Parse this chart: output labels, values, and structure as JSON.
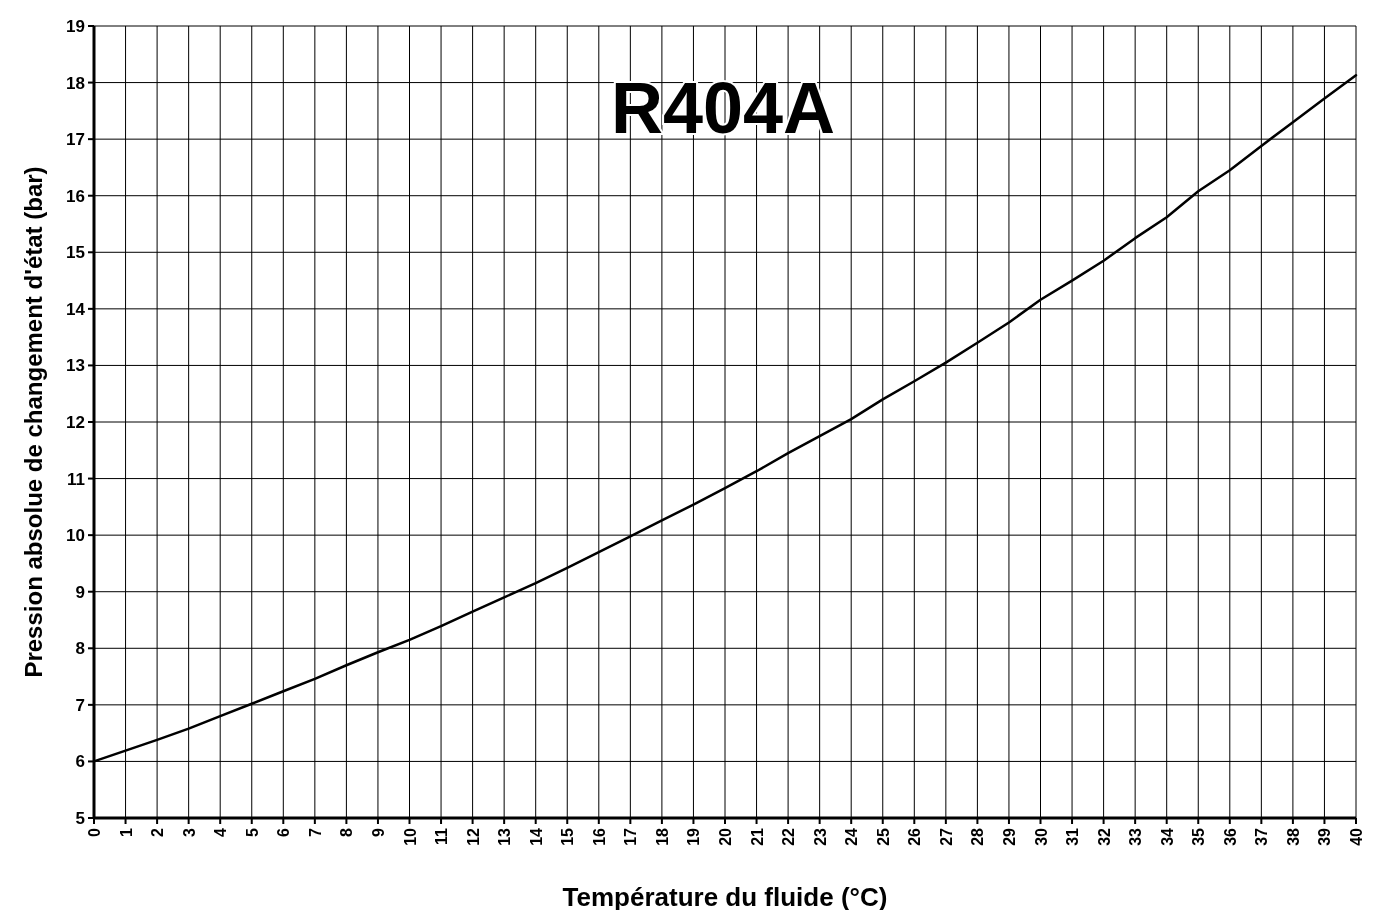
{
  "chart_data": {
    "type": "line",
    "title": "R404A",
    "xlabel": "Température du fluide (°C)",
    "ylabel": "Pression absolue de changement d'état (bar)",
    "x": [
      0,
      1,
      2,
      3,
      4,
      5,
      6,
      7,
      8,
      9,
      10,
      11,
      12,
      13,
      14,
      15,
      16,
      17,
      18,
      19,
      20,
      21,
      22,
      23,
      24,
      25,
      26,
      27,
      28,
      29,
      30,
      31,
      32,
      33,
      34,
      35,
      36,
      37,
      38,
      39,
      40
    ],
    "series": [
      {
        "color": "#000000",
        "values": [
          6.0,
          6.19,
          6.38,
          6.58,
          6.8,
          7.02,
          7.24,
          7.46,
          7.7,
          7.93,
          8.15,
          8.39,
          8.65,
          8.9,
          9.15,
          9.42,
          9.7,
          9.98,
          10.26,
          10.54,
          10.83,
          11.13,
          11.45,
          11.75,
          12.05,
          12.4,
          12.72,
          13.05,
          13.4,
          13.76,
          14.16,
          14.5,
          14.85,
          15.25,
          15.62,
          16.08,
          16.45,
          16.88,
          17.3,
          17.72,
          18.13
        ]
      }
    ],
    "xlim": [
      0,
      40
    ],
    "xticks": [
      0,
      1,
      2,
      3,
      4,
      5,
      6,
      7,
      8,
      9,
      10,
      11,
      12,
      13,
      14,
      15,
      16,
      17,
      18,
      19,
      20,
      21,
      22,
      23,
      24,
      25,
      26,
      27,
      28,
      29,
      30,
      31,
      32,
      33,
      34,
      35,
      36,
      37,
      38,
      39,
      40
    ],
    "ylim": [
      5,
      19
    ],
    "yticks": [
      5,
      6,
      7,
      8,
      9,
      10,
      11,
      12,
      13,
      14,
      15,
      16,
      17,
      18,
      19
    ],
    "grid": true,
    "marker": "none",
    "line_style": "solid"
  }
}
